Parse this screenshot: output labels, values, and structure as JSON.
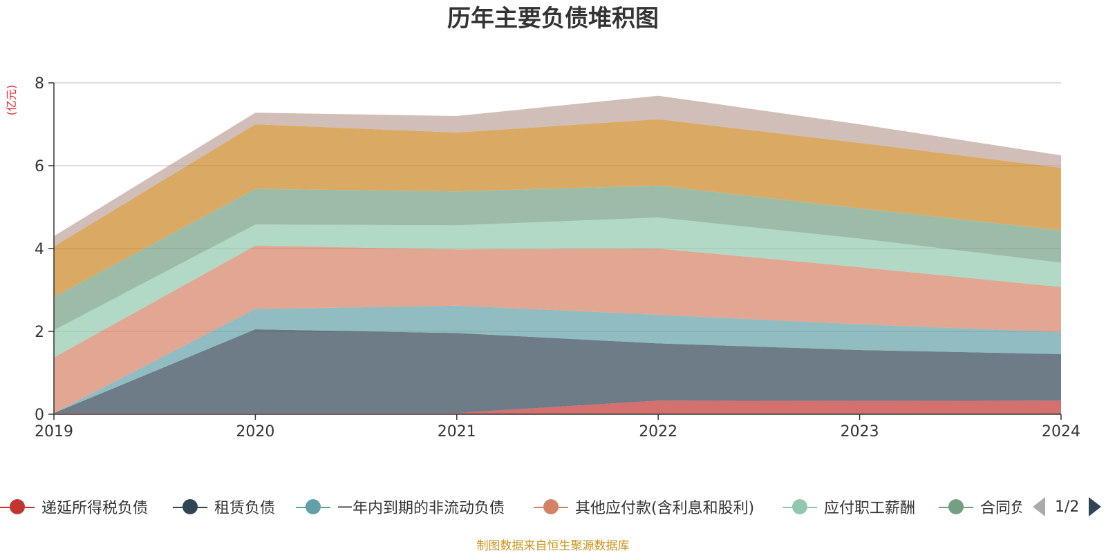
{
  "chart_data": {
    "type": "area",
    "stacked": true,
    "title": "历年主要负债堆积图",
    "ylabel": "(亿元)",
    "x": [
      "2019",
      "2020",
      "2021",
      "2022",
      "2023",
      "2024"
    ],
    "ylim": [
      0,
      8
    ],
    "yticks": [
      0,
      2,
      4,
      6,
      8
    ],
    "grid": true,
    "legend_position": "bottom",
    "series": [
      {
        "name": "递延所得税负债",
        "color": "#c23531",
        "values": [
          0.03,
          0.03,
          0.03,
          0.33,
          0.32,
          0.33
        ]
      },
      {
        "name": "租赁负债",
        "color": "#2f4554",
        "values": [
          0.0,
          2.02,
          1.93,
          1.38,
          1.23,
          1.12
        ]
      },
      {
        "name": "一年内到期的非流动负债",
        "color": "#61a0a8",
        "values": [
          0.0,
          0.49,
          0.66,
          0.69,
          0.62,
          0.53
        ]
      },
      {
        "name": "其他应付款(含利息和股利)",
        "color": "#d48265",
        "values": [
          1.34,
          1.53,
          1.36,
          1.6,
          1.38,
          1.09
        ]
      },
      {
        "name": "应付职工薪酬",
        "color": "#91c7ae",
        "values": [
          0.66,
          0.51,
          0.58,
          0.75,
          0.69,
          0.59
        ]
      },
      {
        "name": "合同负债",
        "color": "#749f83",
        "values": [
          0.8,
          0.86,
          0.82,
          0.77,
          0.73,
          0.78
        ]
      },
      {
        "name": "",
        "color": "#ca8622",
        "values": [
          1.22,
          1.56,
          1.42,
          1.6,
          1.58,
          1.51
        ]
      },
      {
        "name": "",
        "color": "#bda29a",
        "values": [
          0.25,
          0.28,
          0.4,
          0.57,
          0.45,
          0.3
        ]
      }
    ]
  },
  "legend": {
    "items": [
      "递延所得税负债",
      "租赁负债",
      "一年内到期的非流动负债",
      "其他应付款(含利息和股利)",
      "应付职工薪酬",
      "合同负债"
    ],
    "page": "1/2"
  },
  "source": "制图数据来自恒生聚源数据库"
}
